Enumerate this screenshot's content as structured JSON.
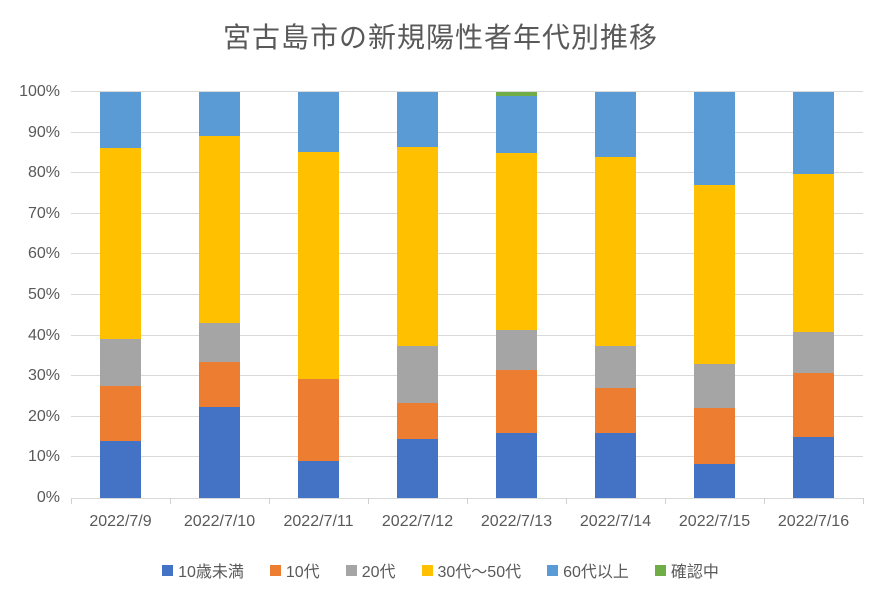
{
  "chart_data": {
    "type": "bar",
    "subtype": "stacked-100",
    "title": "宮古島市の新規陽性者年代別推移",
    "title_color": "#595959",
    "axis_text_color": "#595959",
    "gridline_color": "#d9d9d9",
    "grid": true,
    "legend_position": "bottom",
    "ylim": [
      0,
      100
    ],
    "y_ticks": [
      "0%",
      "10%",
      "20%",
      "30%",
      "40%",
      "50%",
      "60%",
      "70%",
      "80%",
      "90%",
      "100%"
    ],
    "categories": [
      "2022/7/9",
      "2022/7/10",
      "2022/7/11",
      "2022/7/12",
      "2022/7/13",
      "2022/7/14",
      "2022/7/15",
      "2022/7/16"
    ],
    "series": [
      {
        "name": "10歳未満",
        "color": "#4472C4",
        "values": [
          14.0,
          22.5,
          9.0,
          14.5,
          16.0,
          16.0,
          8.3,
          15.0
        ]
      },
      {
        "name": "10代",
        "color": "#ED7D31",
        "values": [
          13.5,
          11.0,
          20.2,
          9.0,
          15.5,
          11.0,
          13.9,
          15.8
        ]
      },
      {
        "name": "20代",
        "color": "#A5A5A5",
        "values": [
          11.7,
          9.6,
          0.0,
          14.0,
          10.0,
          10.5,
          10.8,
          10.2
        ]
      },
      {
        "name": "30代～50代",
        "color": "#FFC000",
        "values": [
          46.9,
          46.1,
          56.1,
          49.0,
          43.5,
          46.5,
          44.2,
          38.8
        ]
      },
      {
        "name": "60代以上",
        "color": "#5B9BD5",
        "values": [
          13.9,
          10.8,
          14.7,
          13.5,
          14.0,
          16.0,
          22.8,
          20.2
        ]
      },
      {
        "name": "確認中",
        "color": "#70AD47",
        "values": [
          0.0,
          0.0,
          0.0,
          0.0,
          1.0,
          0.0,
          0.0,
          0.0
        ]
      }
    ]
  }
}
